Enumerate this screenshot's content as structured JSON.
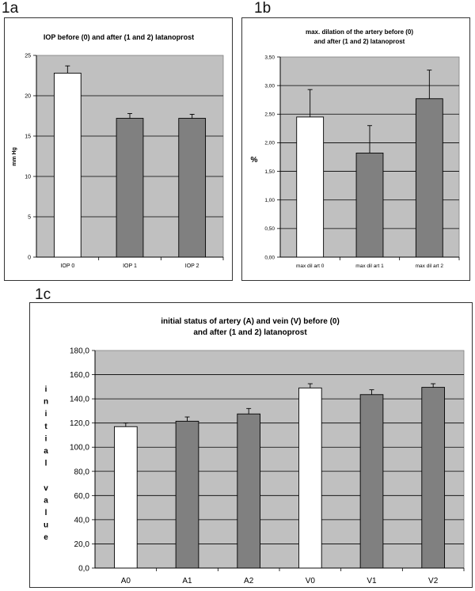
{
  "labels": {
    "a": "1a",
    "b": "1b",
    "c": "1c"
  },
  "chart_data": [
    {
      "type": "bar",
      "title": "IOP before (0) and after (1 and 2) latanoprost",
      "ylabel": "mm Hg",
      "categories": [
        "IOP 0",
        "IOP 1",
        "IOP 2"
      ],
      "values": [
        22.8,
        17.2,
        17.2
      ],
      "errors": [
        0.9,
        0.6,
        0.5
      ],
      "ylim": [
        0,
        25
      ],
      "yticks": [
        "0",
        "5",
        "10",
        "15",
        "20",
        "25"
      ],
      "grid": true,
      "bar_colors": [
        "#ffffff",
        "#808080",
        "#808080"
      ],
      "plot_background": "#c0c0c0"
    },
    {
      "type": "bar",
      "title": "max. dilation of the artery before (0) and after (1 and 2) latanoprost",
      "title_lines": [
        "max. dilation of the artery before (0)",
        "and after (1 and 2) latanoprost"
      ],
      "ylabel": "%",
      "categories": [
        "max dil art 0",
        "max dil art 1",
        "max dil art 2"
      ],
      "values": [
        2.45,
        1.82,
        2.77
      ],
      "errors": [
        0.48,
        0.48,
        0.5
      ],
      "ylim": [
        0,
        3.5
      ],
      "yticks": [
        "0,00",
        "0,50",
        "1,00",
        "1,50",
        "2,00",
        "2,50",
        "3,00",
        "3,50"
      ],
      "grid": true,
      "bar_colors": [
        "#ffffff",
        "#808080",
        "#808080"
      ],
      "plot_background": "#c0c0c0"
    },
    {
      "type": "bar",
      "title": "initial status of artery (A) and vein (V) before (0) and after (1 and 2) latanoprost",
      "title_lines": [
        "initial status of artery (A) and vein (V) before (0)",
        "and after (1 and 2) latanoprost"
      ],
      "ylabel": "initial value",
      "ylabel_lines": [
        "i",
        "n",
        "i",
        "t",
        "i",
        "a",
        "l",
        "",
        "v",
        "a",
        "l",
        "u",
        "e"
      ],
      "categories": [
        "A0",
        "A1",
        "A2",
        "V0",
        "V1",
        "V2"
      ],
      "values": [
        117.0,
        121.5,
        127.5,
        149.0,
        143.5,
        149.5
      ],
      "errors": [
        3.0,
        3.5,
        4.5,
        3.5,
        4.0,
        3.0
      ],
      "ylim": [
        0,
        180
      ],
      "yticks": [
        "0,0",
        "20,0",
        "40,0",
        "60,0",
        "80,0",
        "100,0",
        "120,0",
        "140,0",
        "160,0",
        "180,0"
      ],
      "grid": true,
      "bar_colors": [
        "#ffffff",
        "#808080",
        "#808080",
        "#ffffff",
        "#808080",
        "#808080"
      ],
      "plot_background": "#c0c0c0"
    }
  ]
}
